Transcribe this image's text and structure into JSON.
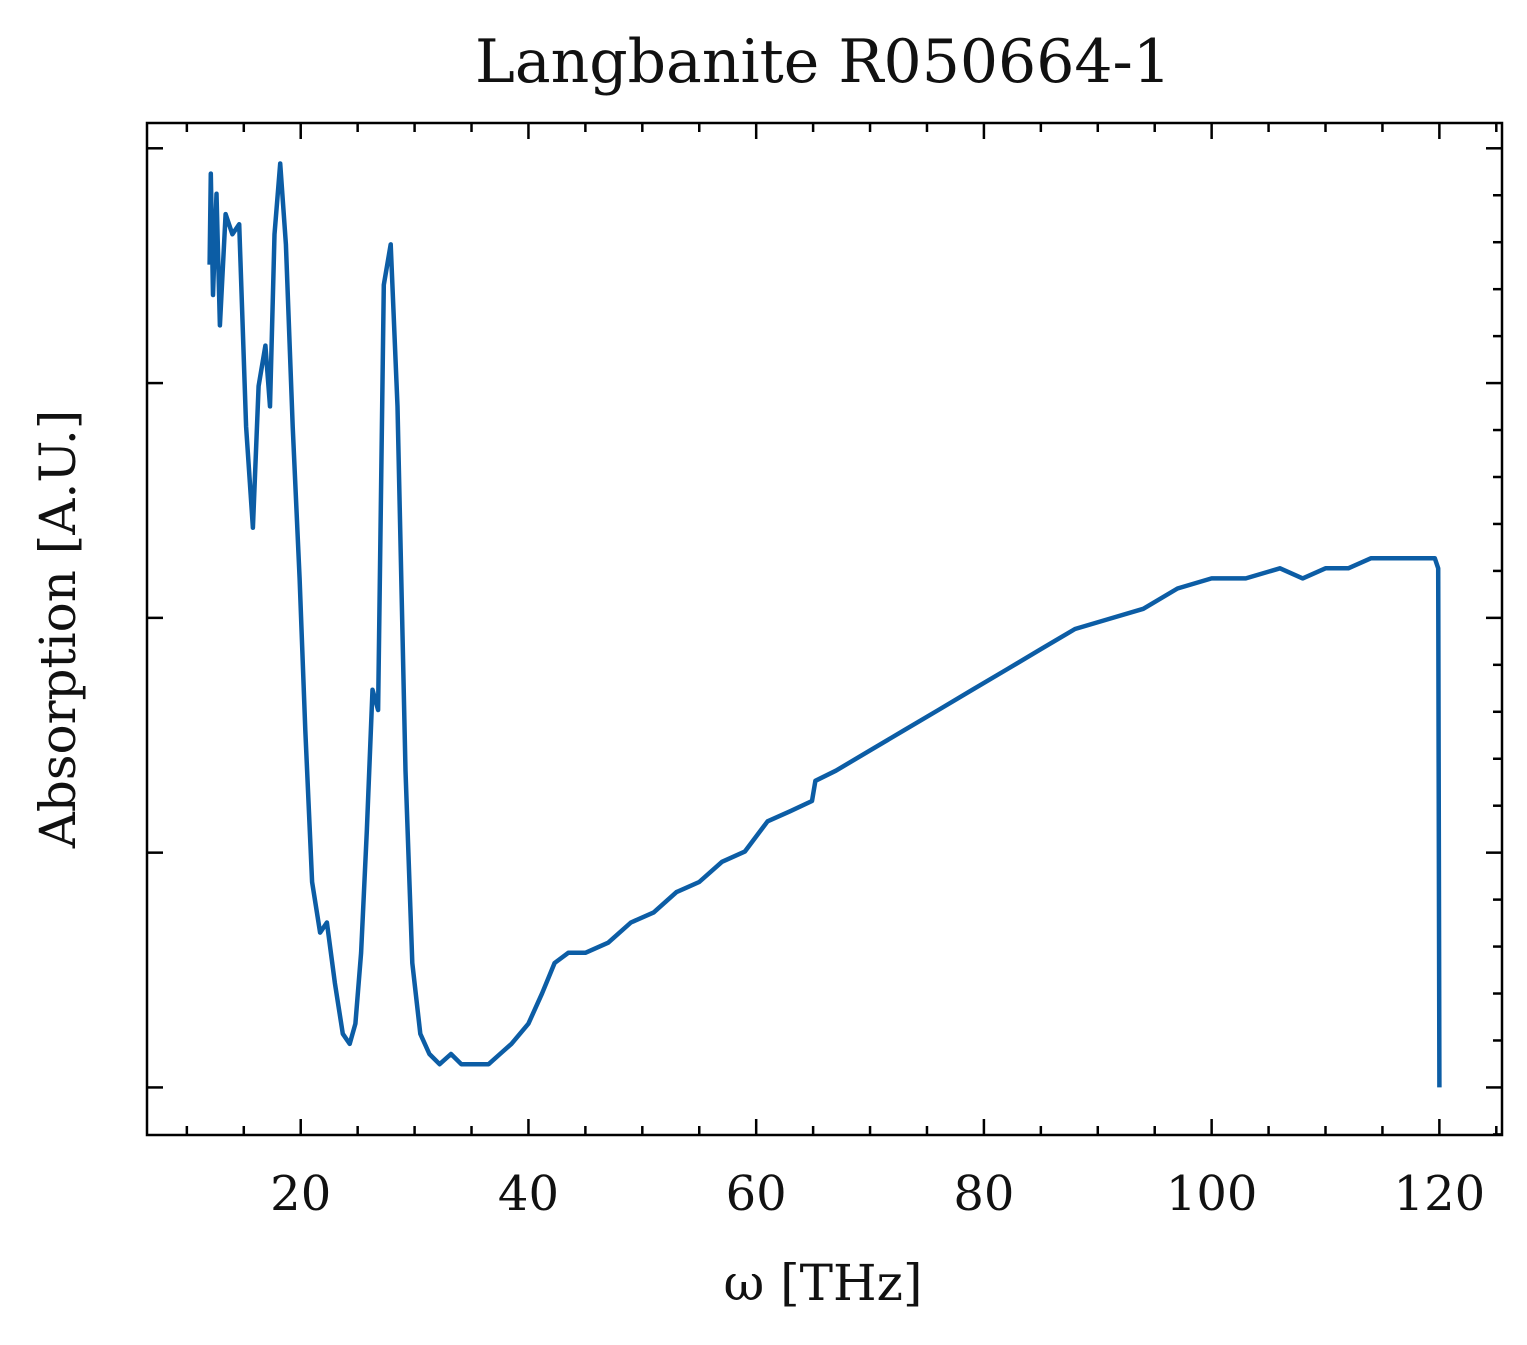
{
  "chart_data": {
    "type": "line",
    "title": "Langbanite R050664-1",
    "xlabel": "ω [THz]",
    "ylabel": "Absorption [A.U.]",
    "xlim": [
      6.5,
      125.5
    ],
    "ylim": [
      0.0,
      1.0
    ],
    "xticks": [
      20,
      40,
      60,
      80,
      100,
      120
    ],
    "xtick_labels": [
      "20",
      "40",
      "60",
      "80",
      100,
      "120"
    ],
    "yticks_major": [
      0.047,
      0.279,
      0.511,
      0.743,
      0.975
    ],
    "ytick_labels_shown": false,
    "grid": false,
    "legend": "none",
    "ticks_direction": "in",
    "series": [
      {
        "color": "#0c5da5",
        "points": [
          [
            12.0,
            0.86
          ],
          [
            12.1,
            0.95
          ],
          [
            12.3,
            0.83
          ],
          [
            12.6,
            0.93
          ],
          [
            12.9,
            0.8
          ],
          [
            13.4,
            0.91
          ],
          [
            14.0,
            0.89
          ],
          [
            14.6,
            0.9
          ],
          [
            15.2,
            0.7
          ],
          [
            15.8,
            0.6
          ],
          [
            16.3,
            0.74
          ],
          [
            16.9,
            0.78
          ],
          [
            17.3,
            0.72
          ],
          [
            17.7,
            0.89
          ],
          [
            18.2,
            0.96
          ],
          [
            18.7,
            0.88
          ],
          [
            19.3,
            0.7
          ],
          [
            19.9,
            0.55
          ],
          [
            20.4,
            0.4
          ],
          [
            21.0,
            0.25
          ],
          [
            21.7,
            0.2
          ],
          [
            22.3,
            0.21
          ],
          [
            23.0,
            0.15
          ],
          [
            23.7,
            0.1
          ],
          [
            24.3,
            0.09
          ],
          [
            24.8,
            0.11
          ],
          [
            25.3,
            0.18
          ],
          [
            25.8,
            0.3
          ],
          [
            26.3,
            0.44
          ],
          [
            26.8,
            0.42
          ],
          [
            27.3,
            0.84
          ],
          [
            27.9,
            0.88
          ],
          [
            28.5,
            0.72
          ],
          [
            29.2,
            0.36
          ],
          [
            29.8,
            0.17
          ],
          [
            30.5,
            0.1
          ],
          [
            31.3,
            0.08
          ],
          [
            32.2,
            0.07
          ],
          [
            33.2,
            0.08
          ],
          [
            34.1,
            0.07
          ],
          [
            35.2,
            0.07
          ],
          [
            36.5,
            0.07
          ],
          [
            37.5,
            0.08
          ],
          [
            38.5,
            0.09
          ],
          [
            40.0,
            0.11
          ],
          [
            41.2,
            0.14
          ],
          [
            42.3,
            0.17
          ],
          [
            43.5,
            0.18
          ],
          [
            45.0,
            0.18
          ],
          [
            47.0,
            0.19
          ],
          [
            49.0,
            0.21
          ],
          [
            51.0,
            0.22
          ],
          [
            53.0,
            0.24
          ],
          [
            55.0,
            0.25
          ],
          [
            57.0,
            0.27
          ],
          [
            59.0,
            0.28
          ],
          [
            61.0,
            0.31
          ],
          [
            63.0,
            0.32
          ],
          [
            64.9,
            0.33
          ],
          [
            65.2,
            0.35
          ],
          [
            67.0,
            0.36
          ],
          [
            70.0,
            0.38
          ],
          [
            73.0,
            0.4
          ],
          [
            76.0,
            0.42
          ],
          [
            79.0,
            0.44
          ],
          [
            82.0,
            0.46
          ],
          [
            85.0,
            0.48
          ],
          [
            88.0,
            0.5
          ],
          [
            91.0,
            0.51
          ],
          [
            94.0,
            0.52
          ],
          [
            97.0,
            0.54
          ],
          [
            100.0,
            0.55
          ],
          [
            103.0,
            0.55
          ],
          [
            106.0,
            0.56
          ],
          [
            108.0,
            0.55
          ],
          [
            110.0,
            0.56
          ],
          [
            112.0,
            0.56
          ],
          [
            114.0,
            0.57
          ],
          [
            116.0,
            0.57
          ],
          [
            118.0,
            0.57
          ],
          [
            119.6,
            0.57
          ],
          [
            119.9,
            0.56
          ],
          [
            120.0,
            0.047
          ]
        ]
      }
    ]
  }
}
